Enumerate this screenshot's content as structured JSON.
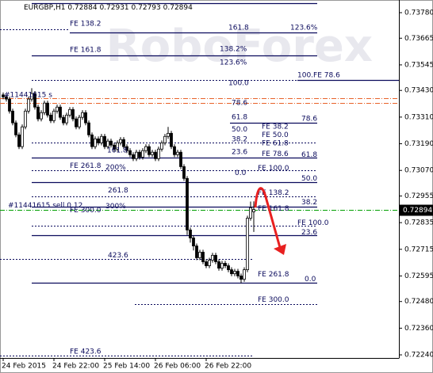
{
  "chart_data": {
    "type": "candlestick",
    "title": "EURGBP,H1",
    "watermark": "RoboForex",
    "categories": [
      "24 Feb 2015",
      null,
      null,
      null,
      null,
      null,
      null,
      null,
      null,
      null,
      null,
      null,
      null,
      null,
      null,
      null,
      "24 Feb 22:00",
      null,
      null,
      null,
      null,
      null,
      null,
      null,
      null,
      null,
      null,
      null,
      null,
      null,
      null,
      null,
      "25 Feb 14:00",
      null,
      null,
      null,
      null,
      null,
      null,
      null,
      null,
      null,
      null,
      null,
      null,
      null,
      null,
      null,
      "26 Feb 06:00",
      null,
      null,
      null,
      null,
      null,
      null,
      null,
      null,
      null,
      null,
      null,
      null,
      null,
      null,
      null,
      "26 Feb 22:00",
      null,
      null,
      null,
      null,
      null,
      null,
      null,
      null,
      null,
      null,
      null,
      null,
      null,
      null,
      null
    ],
    "open": [
      0.7341,
      0.73401,
      0.73391,
      0.73337,
      0.73284,
      0.7323,
      0.73177,
      0.73266,
      0.73337,
      0.73391,
      0.73416,
      0.73355,
      0.73302,
      0.7333,
      0.73373,
      0.73319,
      0.73294,
      0.73337,
      0.73355,
      0.73309,
      0.73284,
      0.73319,
      0.73344,
      0.73302,
      0.73266,
      0.73309,
      0.7333,
      0.73284,
      0.7323,
      0.73177,
      0.73212,
      0.73194,
      0.73223,
      0.73177,
      0.73202,
      0.73184,
      0.73166,
      0.73194,
      0.73209,
      0.73177,
      0.73159,
      0.73141,
      0.73123,
      0.73152,
      0.7313,
      0.73159,
      0.73177,
      0.73141,
      0.73152,
      0.73123,
      0.73166,
      0.73194,
      0.73223,
      0.73237,
      0.73177,
      0.73141,
      0.73152,
      0.73087,
      0.73034,
      0.72802,
      0.72766,
      0.7273,
      0.72677,
      0.72702,
      0.72659,
      0.72641,
      0.72666,
      0.72688,
      0.72659,
      0.7263,
      0.72652,
      0.72641,
      0.72623,
      0.72605,
      0.72616,
      0.72595,
      0.7258,
      0.72623,
      0.72855,
      0.72884
    ],
    "high": [
      0.73421,
      0.73412,
      0.73402,
      0.73348,
      0.73295,
      0.73241,
      0.73277,
      0.73348,
      0.73402,
      0.7344,
      0.73427,
      0.73366,
      0.73341,
      0.73384,
      0.73384,
      0.7333,
      0.73348,
      0.73366,
      0.73366,
      0.7332,
      0.7333,
      0.73355,
      0.73355,
      0.73313,
      0.7332,
      0.73341,
      0.73341,
      0.73295,
      0.73241,
      0.73223,
      0.73223,
      0.73234,
      0.73234,
      0.73213,
      0.73213,
      0.73195,
      0.73205,
      0.7322,
      0.7322,
      0.73188,
      0.7317,
      0.73152,
      0.73163,
      0.73163,
      0.7317,
      0.73188,
      0.73188,
      0.73163,
      0.73163,
      0.73177,
      0.73205,
      0.73234,
      0.73266,
      0.73248,
      0.73188,
      0.73163,
      0.73163,
      0.73098,
      0.73045,
      0.72813,
      0.72777,
      0.72741,
      0.72713,
      0.72713,
      0.7267,
      0.72677,
      0.72699,
      0.72699,
      0.7267,
      0.72663,
      0.72663,
      0.72652,
      0.72634,
      0.72627,
      0.72627,
      0.72606,
      0.72634,
      0.72866,
      0.7293,
      0.72931
    ],
    "low": [
      0.7339,
      0.7338,
      0.73326,
      0.73273,
      0.73219,
      0.73166,
      0.73166,
      0.73255,
      0.73326,
      0.7338,
      0.73344,
      0.73291,
      0.73291,
      0.73319,
      0.73308,
      0.73283,
      0.73283,
      0.73326,
      0.73298,
      0.73273,
      0.73273,
      0.73308,
      0.73291,
      0.73255,
      0.73255,
      0.73298,
      0.73273,
      0.73219,
      0.73166,
      0.73166,
      0.73183,
      0.73183,
      0.73166,
      0.73166,
      0.73173,
      0.73155,
      0.73155,
      0.73183,
      0.73166,
      0.73148,
      0.7313,
      0.73112,
      0.73112,
      0.73119,
      0.73119,
      0.73148,
      0.7313,
      0.7313,
      0.73112,
      0.73112,
      0.73155,
      0.73183,
      0.73212,
      0.73166,
      0.7313,
      0.7313,
      0.73076,
      0.73023,
      0.7278,
      0.72745,
      0.7271,
      0.72666,
      0.72666,
      0.72648,
      0.7263,
      0.7263,
      0.72655,
      0.72648,
      0.72619,
      0.72619,
      0.7263,
      0.72612,
      0.72594,
      0.72594,
      0.72584,
      0.72563,
      0.72569,
      0.72612,
      0.72844,
      0.72793
    ],
    "close": [
      0.73401,
      0.73391,
      0.73337,
      0.73284,
      0.7323,
      0.73177,
      0.73266,
      0.73337,
      0.73391,
      0.73416,
      0.73355,
      0.73302,
      0.7333,
      0.73373,
      0.73319,
      0.73294,
      0.73337,
      0.73355,
      0.73309,
      0.73284,
      0.73319,
      0.73344,
      0.73302,
      0.73266,
      0.73309,
      0.7333,
      0.73284,
      0.7323,
      0.73177,
      0.73212,
      0.73194,
      0.73223,
      0.73177,
      0.73202,
      0.73184,
      0.73166,
      0.73194,
      0.73209,
      0.73177,
      0.73159,
      0.73141,
      0.73123,
      0.73152,
      0.7313,
      0.73159,
      0.73177,
      0.73141,
      0.73152,
      0.73123,
      0.73166,
      0.73194,
      0.73223,
      0.73237,
      0.73177,
      0.73141,
      0.73152,
      0.73087,
      0.73034,
      0.72802,
      0.72766,
      0.7273,
      0.72677,
      0.72702,
      0.72659,
      0.72641,
      0.72666,
      0.72688,
      0.72659,
      0.7263,
      0.72652,
      0.72641,
      0.72623,
      0.72605,
      0.72616,
      0.72595,
      0.7258,
      0.72623,
      0.72855,
      0.72902,
      0.72894
    ],
    "up_color": "#ffffff",
    "down_color": "#000000",
    "ylim": [
      0.72226,
      0.73837
    ],
    "yticks": [
      {
        "value": 0.7378,
        "label": "0.73780"
      },
      0.73665,
      0.73545,
      {
        "value": 0.7343,
        "label": "0.73430"
      },
      {
        "value": 0.7331,
        "label": "0.73310"
      },
      {
        "value": 0.7319,
        "label": "0.73190"
      },
      {
        "value": 0.7307,
        "label": "0.73070"
      },
      0.72955,
      0.72835,
      0.72715,
      0.72595,
      {
        "value": 0.7248,
        "label": "0.72480"
      },
      {
        "value": 0.7236,
        "label": "0.72360"
      },
      {
        "value": 0.7224,
        "label": "0.72240"
      }
    ],
    "last_price": 0.72894,
    "last_price_color": "#00a000",
    "level_color": "#0a0a5c",
    "order_color": "#e8632a",
    "levels": [
      {
        "price": 0.73823,
        "style": "solid"
      },
      {
        "price": 0.73705,
        "style": "dotted"
      },
      {
        "price": 0.73691,
        "style": "solid"
      },
      {
        "price": 0.73587,
        "style": "solid"
      },
      {
        "price": 0.73476,
        "style": "dotted"
      },
      {
        "price": 0.73476,
        "style": "solid"
      },
      {
        "price": 0.73394,
        "style": "dashdot"
      },
      {
        "price": 0.73373,
        "style": "dashdot"
      },
      {
        "price": 0.73284,
        "style": "solid"
      },
      {
        "price": 0.73194,
        "style": "dotted"
      },
      {
        "price": 0.73127,
        "style": "solid"
      },
      {
        "price": 0.73069,
        "style": "dotted"
      },
      {
        "price": 0.73016,
        "style": "solid"
      },
      {
        "price": 0.72952,
        "style": "dotted"
      },
      {
        "price": 0.72905,
        "style": "solid"
      },
      {
        "price": 0.7282,
        "style": "dotted"
      },
      {
        "price": 0.72777,
        "style": "solid"
      },
      {
        "price": 0.7267,
        "style": "dotted"
      },
      {
        "price": 0.72563,
        "style": "solid"
      },
      {
        "price": 0.7247,
        "style": "dotted"
      },
      {
        "price": 0.72238,
        "style": "dotted"
      }
    ],
    "annotations": [
      {
        "text": "FE 138.2",
        "price": 0.7373
      },
      {
        "text": "161.8",
        "price": 0.73712
      },
      {
        "text": "123.6%",
        "price": 0.73712
      },
      {
        "text": "FE 161.8",
        "price": 0.73612
      },
      {
        "text": "138.2%",
        "price": 0.73616
      },
      {
        "text": "123.6%",
        "price": 0.73555
      },
      {
        "text": "100.0",
        "price": 0.73462
      },
      {
        "text": "100.FE 78.6",
        "price": 0.73498
      },
      {
        "text": "78.6",
        "price": 0.73373
      },
      {
        "text": "61.8",
        "price": 0.73309
      },
      {
        "text": "78.6",
        "price": 0.73302
      },
      {
        "text": "FE 38.2",
        "price": 0.73266
      },
      {
        "text": "50.0",
        "price": 0.73255
      },
      {
        "text": "FE 50.0",
        "price": 0.7323
      },
      {
        "text": "38.2",
        "price": 0.73209
      },
      {
        "text": "FE 61.8",
        "price": 0.73191
      },
      {
        "text": "161.8",
        "price": 0.73159
      },
      {
        "text": "23.6",
        "price": 0.73152
      },
      {
        "text": "FE 78.6",
        "price": 0.73144
      },
      {
        "text": "61.8",
        "price": 0.73141
      },
      {
        "text": "FE 261.8",
        "price": 0.73091
      },
      {
        "text": "200%",
        "price": 0.73084
      },
      {
        "text": "FE 100.0",
        "price": 0.7308
      },
      {
        "text": "0.0",
        "price": 0.73059
      },
      {
        "text": "50.0",
        "price": 0.73034
      },
      {
        "text": "261.8",
        "price": 0.7298
      },
      {
        "text": "FE 138.2",
        "price": 0.72969
      },
      {
        "text": "38.2",
        "price": 0.72927
      },
      {
        "text": "#11441615 sell 0.12",
        "price": 0.72912
      },
      {
        "text": "300%",
        "price": 0.72909
      },
      {
        "text": "FE 300.0",
        "price": 0.72891
      },
      {
        "text": "FE 161.8",
        "price": 0.72898
      },
      {
        "text": "FE 100.0",
        "price": 0.72834
      },
      {
        "text": "23.6",
        "price": 0.72791
      },
      {
        "text": "423.6",
        "price": 0.72687
      },
      {
        "text": "FE 261.8",
        "price": 0.72602
      },
      {
        "text": "0.0",
        "price": 0.7258
      },
      {
        "text": "FE 300.0",
        "price": 0.72488
      },
      {
        "text": "FE 423.6",
        "price": 0.72255
      },
      {
        "text": "#11441615 s",
        "price": 0.73409
      }
    ]
  }
}
